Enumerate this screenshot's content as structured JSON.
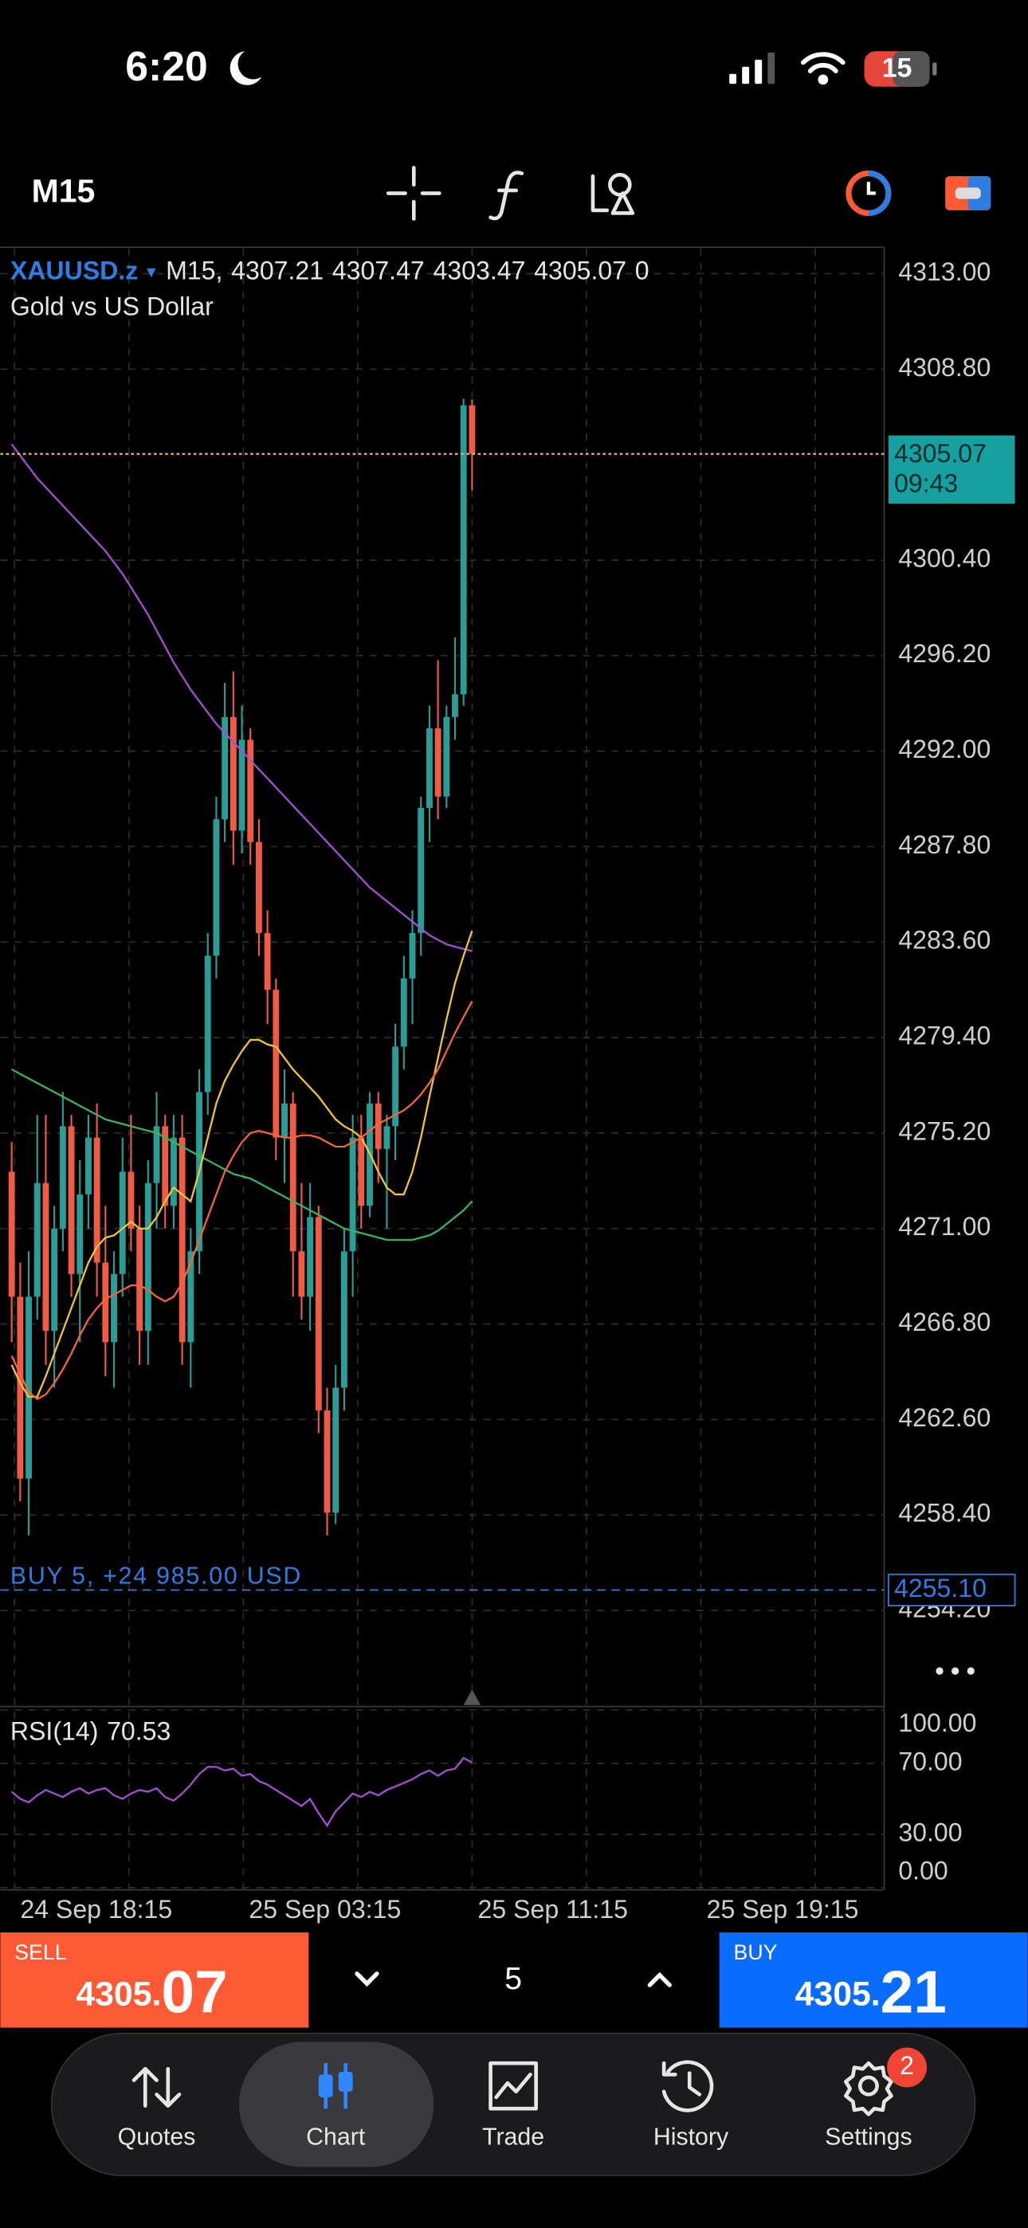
{
  "status_bar": {
    "time": "6:20",
    "battery": "15"
  },
  "toolbar": {
    "timeframe": "M15"
  },
  "chart_data": {
    "type": "candlestick",
    "symbol": "XAUUSD.z",
    "symbol_menu": "▾",
    "header_timeframe": "M15,",
    "description": "Gold vs US Dollar",
    "volume": 0,
    "up_color": "#2a9d97",
    "down_color": "#ef5b45",
    "ohlc": [
      [
        4273.5,
        4274.8,
        4266,
        4268
      ],
      [
        4268,
        4269.5,
        4259,
        4260
      ],
      [
        4260,
        4270,
        4257.5,
        4268
      ],
      [
        4268,
        4276,
        4267,
        4273
      ],
      [
        4273,
        4276,
        4265,
        4266.5
      ],
      [
        4266.5,
        4272,
        4264,
        4271
      ],
      [
        4271,
        4277,
        4270,
        4275.5
      ],
      [
        4275.5,
        4276,
        4268,
        4269
      ],
      [
        4269,
        4274,
        4266,
        4272.5
      ],
      [
        4272.5,
        4276,
        4271,
        4275
      ],
      [
        4275,
        4276.5,
        4268,
        4269.5
      ],
      [
        4269.5,
        4272,
        4264.5,
        4266
      ],
      [
        4266,
        4270,
        4264,
        4269
      ],
      [
        4269,
        4275,
        4268,
        4273.5
      ],
      [
        4273.5,
        4276,
        4270,
        4271
      ],
      [
        4271,
        4272,
        4265,
        4266.5
      ],
      [
        4266.5,
        4274,
        4265,
        4273
      ],
      [
        4273,
        4277,
        4271,
        4275.5
      ],
      [
        4275.5,
        4276,
        4271,
        4272
      ],
      [
        4272,
        4276,
        4271,
        4275
      ],
      [
        4275,
        4276,
        4265,
        4266
      ],
      [
        4266,
        4271,
        4264,
        4270
      ],
      [
        4270,
        4278,
        4269,
        4277
      ],
      [
        4277,
        4284,
        4276,
        4283
      ],
      [
        4283,
        4290,
        4282,
        4289
      ],
      [
        4289,
        4295,
        4288,
        4293.5
      ],
      [
        4293.5,
        4295.5,
        4287,
        4288.5
      ],
      [
        4288.5,
        4294,
        4287.5,
        4292.5
      ],
      [
        4292.5,
        4293,
        4287,
        4288
      ],
      [
        4288,
        4289,
        4283,
        4284
      ],
      [
        4284,
        4285,
        4280,
        4281.5
      ],
      [
        4281.5,
        4282,
        4274,
        4275
      ],
      [
        4275,
        4278,
        4273,
        4276.5
      ],
      [
        4276.5,
        4277,
        4268,
        4270
      ],
      [
        4270,
        4273,
        4267,
        4268
      ],
      [
        4268,
        4273,
        4266.5,
        4271.5
      ],
      [
        4271.5,
        4272,
        4262,
        4263
      ],
      [
        4263,
        4264,
        4257.5,
        4258.5
      ],
      [
        4258.5,
        4265,
        4258,
        4264
      ],
      [
        4264,
        4271,
        4263,
        4270
      ],
      [
        4270,
        4276,
        4268,
        4275
      ],
      [
        4275,
        4276,
        4271,
        4272
      ],
      [
        4272,
        4277,
        4271.5,
        4276.5
      ],
      [
        4276.5,
        4277,
        4273,
        4274.5
      ],
      [
        4274.5,
        4276,
        4271,
        4275.5
      ],
      [
        4275.5,
        4280,
        4274,
        4279
      ],
      [
        4279,
        4283,
        4278,
        4282
      ],
      [
        4282,
        4285,
        4280,
        4284
      ],
      [
        4284,
        4290,
        4283,
        4289.5
      ],
      [
        4289.5,
        4294,
        4288,
        4293
      ],
      [
        4293,
        4296,
        4289,
        4290
      ],
      [
        4290,
        4294,
        4289.5,
        4293.5
      ],
      [
        4293.5,
        4297,
        4292.5,
        4294.5
      ],
      [
        4294.5,
        4307.5,
        4294,
        4307.21
      ],
      [
        4307.21,
        4307.47,
        4303.47,
        4305.07
      ]
    ],
    "moving_averages": [
      {
        "color": "#a24fd0",
        "values": [
          4305.5,
          4305.0,
          4304.5,
          4304.0,
          4303.6,
          4303.2,
          4302.8,
          4302.4,
          4302.0,
          4301.6,
          4301.2,
          4300.8,
          4300.3,
          4299.8,
          4299.2,
          4298.6,
          4298.0,
          4297.3,
          4296.6,
          4295.9,
          4295.3,
          4294.7,
          4294.2,
          4293.7,
          4293.2,
          4292.8,
          4292.4,
          4292.0,
          4291.6,
          4291.2,
          4290.8,
          4290.4,
          4290.0,
          4289.6,
          4289.2,
          4288.8,
          4288.4,
          4288.0,
          4287.6,
          4287.2,
          4286.8,
          4286.4,
          4286.0,
          4285.7,
          4285.4,
          4285.1,
          4284.8,
          4284.5,
          4284.2,
          4283.9,
          4283.7,
          4283.5,
          4283.4,
          4283.3,
          4283.2
        ]
      },
      {
        "color": "#3cb25a",
        "values": [
          4278.0,
          4277.8,
          4277.6,
          4277.4,
          4277.2,
          4277.0,
          4276.8,
          4276.6,
          4276.4,
          4276.2,
          4276.0,
          4275.8,
          4275.7,
          4275.6,
          4275.5,
          4275.4,
          4275.3,
          4275.2,
          4275.0,
          4274.8,
          4274.6,
          4274.4,
          4274.2,
          4274.0,
          4273.8,
          4273.6,
          4273.4,
          4273.3,
          4273.2,
          4273.0,
          4272.8,
          4272.6,
          4272.4,
          4272.2,
          4272.0,
          4271.8,
          4271.6,
          4271.4,
          4271.2,
          4271.0,
          4270.9,
          4270.8,
          4270.7,
          4270.6,
          4270.5,
          4270.5,
          4270.5,
          4270.5,
          4270.6,
          4270.7,
          4270.9,
          4271.2,
          4271.5,
          4271.8,
          4272.2
        ]
      },
      {
        "color": "#f0c23a",
        "values": [
          4265.0,
          4264.2,
          4263.6,
          4263.6,
          4264.5,
          4265.5,
          4266.5,
          4267.5,
          4268.5,
          4269.5,
          4270.2,
          4270.6,
          4270.7,
          4271.0,
          4271.3,
          4271.0,
          4271.0,
          4271.5,
          4272.2,
          4272.8,
          4272.5,
          4272.2,
          4273.5,
          4275.0,
          4276.5,
          4277.5,
          4278.2,
          4278.8,
          4279.3,
          4279.3,
          4279.1,
          4279.0,
          4278.5,
          4278.0,
          4277.6,
          4277.2,
          4276.8,
          4276.3,
          4275.8,
          4275.5,
          4275.3,
          4275.0,
          4274.3,
          4273.5,
          4272.8,
          4272.5,
          4272.5,
          4273.5,
          4275.0,
          4276.8,
          4278.5,
          4280.2,
          4281.8,
          4283.0,
          4284.1
        ]
      },
      {
        "color": "#f0663a",
        "values": [
          4265.4,
          4264.6,
          4263.8,
          4263.5,
          4263.7,
          4264.2,
          4264.8,
          4265.5,
          4266.3,
          4267.0,
          4267.5,
          4267.9,
          4268.1,
          4268.3,
          4268.5,
          4268.5,
          4268.3,
          4268.0,
          4267.8,
          4268.0,
          4268.6,
          4269.5,
          4270.5,
          4271.5,
          4272.5,
          4273.5,
          4274.2,
          4274.8,
          4275.2,
          4275.3,
          4275.2,
          4275.1,
          4275.0,
          4275.0,
          4275.1,
          4275.1,
          4275.0,
          4274.8,
          4274.6,
          4274.6,
          4274.8,
          4275.0,
          4275.3,
          4275.6,
          4275.8,
          4276.0,
          4276.2,
          4276.5,
          4276.9,
          4277.4,
          4278.0,
          4278.8,
          4279.6,
          4280.3,
          4281.0
        ]
      }
    ],
    "ylim": [
      4250.1,
      4314.1
    ],
    "yticks": [
      {
        "value": 4313,
        "label": "4313.00"
      },
      {
        "value": 4308.8,
        "label": "4308.80"
      },
      {
        "value": 4300.4,
        "label": "4300.40"
      },
      {
        "value": 4296.2,
        "label": "4296.20"
      },
      {
        "value": 4292,
        "label": "4292.00"
      },
      {
        "value": 4287.8,
        "label": "4287.80"
      },
      {
        "value": 4283.6,
        "label": "4283.60"
      },
      {
        "value": 4279.4,
        "label": "4279.40"
      },
      {
        "value": 4275.2,
        "label": "4275.20"
      },
      {
        "value": 4271,
        "label": "4271.00"
      },
      {
        "value": 4266.8,
        "label": "4266.80"
      },
      {
        "value": 4262.6,
        "label": "4262.60"
      },
      {
        "value": 4258.4,
        "label": "4258.40"
      },
      {
        "value": 4254.2,
        "label": "4254.20"
      }
    ],
    "xtick_labels": [
      "24 Sep 18:15",
      "25 Sep 03:15",
      "25 Sep 11:15",
      "25 Sep 19:15"
    ],
    "countdown": "09:43",
    "position": {
      "label": "BUY 5, +24 985.00 USD",
      "price": 4255.1,
      "price_label": "4255.10"
    },
    "rsi": {
      "title": "RSI(14)",
      "color": "#a24fd0",
      "ylim": [
        0,
        100
      ],
      "yticks": [
        {
          "value": 100,
          "label": "100.00"
        },
        {
          "value": 70,
          "label": "70.00"
        },
        {
          "value": 30,
          "label": "30.00"
        },
        {
          "value": 0,
          "label": "0.00"
        }
      ],
      "values": [
        54,
        50,
        48,
        52,
        55,
        53,
        51,
        54,
        56,
        53,
        55,
        56,
        52,
        50,
        53,
        55,
        54,
        56,
        51,
        49,
        53,
        58,
        64,
        68,
        68,
        66,
        67,
        63,
        64,
        60,
        58,
        55,
        52,
        49,
        46,
        50,
        42,
        35,
        43,
        48,
        53,
        51,
        54,
        52,
        55,
        57,
        59,
        61,
        64,
        66,
        63,
        66,
        67,
        73,
        70.53
      ]
    }
  },
  "trade_bar": {
    "sell_label": "SELL",
    "sell_price_head": "4305.",
    "sell_price_tail": "07",
    "volume": "5",
    "buy_label": "BUY",
    "buy_price_head": "4305.",
    "buy_price_tail": "21"
  },
  "tab_bar": {
    "tabs": [
      "Quotes",
      "Chart",
      "Trade",
      "History",
      "Settings"
    ],
    "selected": 1,
    "settings_badge": "2"
  }
}
